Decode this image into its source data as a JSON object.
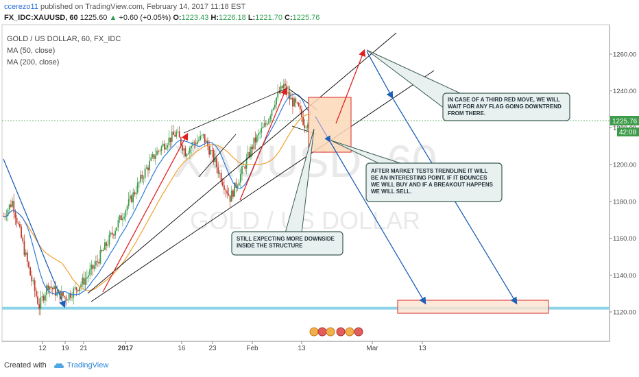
{
  "header": {
    "author": "ccerezo11",
    "published_text": "published on TradingView.com, February 14, 2017 11:18 EST",
    "symbol": "FX_IDC:XAUUSD, 60",
    "price": "1225.60",
    "change": "+0.60 (+0.05%)",
    "open_label": "O:",
    "open": "1223.43",
    "high_label": "H:",
    "high": "1226.18",
    "low_label": "L:",
    "low": "1221.70",
    "close_label": "C:",
    "close": "1225.76"
  },
  "legend": {
    "title": "GOLD / US DOLLAR, 60, FX_IDC",
    "ma50": "MA (50, close)",
    "ma200": "MA (200, close)"
  },
  "watermark": {
    "symbol": "XAUUSD, 60",
    "name": "GOLD / US DOLLAR"
  },
  "price_tags": {
    "current": "1225.76",
    "countdown": "42:08"
  },
  "annotations": [
    {
      "text_lines": [
        "IN CASE OF A THIRD RED MOVE, WE WILL",
        "WAIT FOR ANY FLAG GOING DOWNTREND",
        "FROM THERE."
      ]
    },
    {
      "text_lines": [
        "AFTER MARKET TESTS TRENDLINE IT WILL",
        "BE AN INTERESTING POINT. IF IT BOUNCES",
        "WE WILL BUY AND IF A BREAKOUT HAPPENS",
        "WE WILL SELL."
      ]
    },
    {
      "text_lines": [
        "STILL EXPECTING MORE DOWNSIDE",
        "INSIDE THE STRUCTURE"
      ]
    }
  ],
  "footer": {
    "created_with": "Created with",
    "brand": "TradingView"
  },
  "colors": {
    "up_candle": "#3d9c4a",
    "down_candle": "#c0392b",
    "ma50": "#2a7ad8",
    "ma200": "#f0a030",
    "red_arrow": "#e02020",
    "blue_arrow": "#1e5fb8",
    "support_line": "#8fd3e8",
    "box_fill": "#fbd9b8",
    "box_border": "#e04848",
    "note_fill": "#e8f0f0",
    "note_border": "#3a5a50"
  },
  "chart_data": {
    "type": "candlestick",
    "symbol": "XAUUSD",
    "timeframe": "60",
    "y_axis": {
      "ticks": [
        1120.0,
        1140.0,
        1160.0,
        1180.0,
        1200.0,
        1220.0,
        1240.0,
        1260.0
      ],
      "tick_labels": [
        "1120.00",
        "1140.00",
        "1160.00",
        "1180.00",
        "1200.00",
        "1220.00",
        "1240.00",
        "1260.00"
      ],
      "range": [
        1104,
        1276
      ]
    },
    "x_axis": {
      "tick_labels": [
        "12",
        "19",
        "21",
        "2017",
        "16",
        "23",
        "Feb",
        "13",
        "Mar",
        "13"
      ]
    },
    "price_path": [
      {
        "t": 0,
        "p": 1172
      },
      {
        "t": 3,
        "p": 1180
      },
      {
        "t": 6,
        "p": 1160
      },
      {
        "t": 9,
        "p": 1140
      },
      {
        "t": 12,
        "p": 1123
      },
      {
        "t": 15,
        "p": 1135
      },
      {
        "t": 18,
        "p": 1130
      },
      {
        "t": 21,
        "p": 1128
      },
      {
        "t": 24,
        "p": 1132
      },
      {
        "t": 27,
        "p": 1137
      },
      {
        "t": 31,
        "p": 1146
      },
      {
        "t": 35,
        "p": 1158
      },
      {
        "t": 39,
        "p": 1170
      },
      {
        "t": 43,
        "p": 1182
      },
      {
        "t": 47,
        "p": 1195
      },
      {
        "t": 51,
        "p": 1206
      },
      {
        "t": 55,
        "p": 1213
      },
      {
        "t": 58,
        "p": 1217
      },
      {
        "t": 61,
        "p": 1207
      },
      {
        "t": 64,
        "p": 1212
      },
      {
        "t": 67,
        "p": 1215
      },
      {
        "t": 70,
        "p": 1205
      },
      {
        "t": 73,
        "p": 1193
      },
      {
        "t": 76,
        "p": 1182
      },
      {
        "t": 78,
        "p": 1189
      },
      {
        "t": 81,
        "p": 1200
      },
      {
        "t": 84,
        "p": 1212
      },
      {
        "t": 88,
        "p": 1222
      },
      {
        "t": 91,
        "p": 1235
      },
      {
        "t": 94,
        "p": 1243
      },
      {
        "t": 96,
        "p": 1236
      },
      {
        "t": 99,
        "p": 1230
      },
      {
        "t": 101,
        "p": 1222
      },
      {
        "t": 103,
        "p": 1226
      }
    ],
    "current_price": 1225.76,
    "support_level": 1122,
    "series": [
      {
        "name": "MA (50, close)"
      },
      {
        "name": "MA (200, close)"
      }
    ]
  }
}
